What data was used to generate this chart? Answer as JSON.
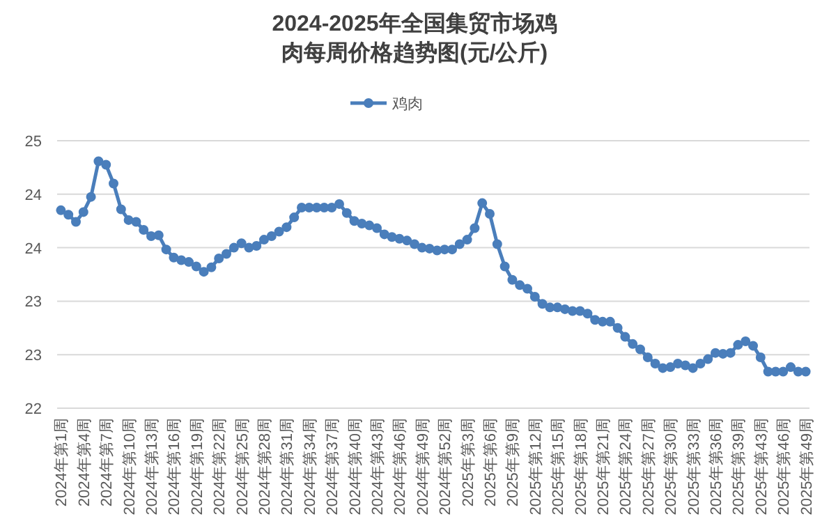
{
  "chart_data": {
    "type": "line",
    "title": "2024-2025年全国集贸市场鸡肉每周价格趋势图(元/公斤)",
    "categories": [
      "2024年第1周",
      null,
      null,
      "2024年第4周",
      null,
      null,
      "2024年第7周",
      null,
      null,
      "2024年第10周",
      null,
      null,
      "2024年第13周",
      null,
      null,
      "2024年第16周",
      null,
      null,
      "2024年第19周",
      null,
      null,
      "2024年第22周",
      null,
      null,
      "2024年第25周",
      null,
      null,
      "2024年第28周",
      null,
      null,
      "2024年第31周",
      null,
      null,
      "2024年第34周",
      null,
      null,
      "2024年第37周",
      null,
      null,
      "2024年第40周",
      null,
      null,
      "2024年第43周",
      null,
      null,
      "2024年第46周",
      null,
      null,
      "2024年第49周",
      null,
      null,
      "2024年第52周",
      null,
      null,
      "2025年第3周",
      null,
      null,
      "2025年第6周",
      null,
      null,
      "2025年第9周",
      null,
      null,
      "2025年第12周",
      null,
      null,
      "2025年第15周",
      null,
      null,
      "2025年第18周",
      null,
      null,
      "2025年第21周",
      null,
      null,
      "2025年第24周",
      null,
      null,
      "2025年第27周",
      null,
      null,
      "2025年第30周",
      null,
      null,
      "2025年第33周",
      null,
      null,
      "2025年第36周",
      null,
      null,
      "2025年第39周",
      null,
      null,
      "2025年第43周",
      null,
      null,
      "2025年第46周",
      null,
      null,
      "2025年第49周"
    ],
    "series": [
      {
        "name": "鸡肉",
        "color": "#4a7ebb",
        "values": [
          24.22,
          24.17,
          24.09,
          24.2,
          24.37,
          24.77,
          24.73,
          24.52,
          24.23,
          24.11,
          24.09,
          24.0,
          23.93,
          23.94,
          23.78,
          23.69,
          23.66,
          23.64,
          23.59,
          23.53,
          23.58,
          23.68,
          23.73,
          23.8,
          23.85,
          23.8,
          23.82,
          23.89,
          23.93,
          23.98,
          24.03,
          24.14,
          24.25,
          24.25,
          24.25,
          24.25,
          24.25,
          24.29,
          24.19,
          24.1,
          24.07,
          24.05,
          24.02,
          23.95,
          23.92,
          23.9,
          23.88,
          23.84,
          23.8,
          23.79,
          23.77,
          23.78,
          23.78,
          23.84,
          23.89,
          24.02,
          24.3,
          24.18,
          23.84,
          23.59,
          23.44,
          23.38,
          23.34,
          23.25,
          23.17,
          23.13,
          23.13,
          23.11,
          23.09,
          23.09,
          23.06,
          22.99,
          22.97,
          22.97,
          22.9,
          22.8,
          22.72,
          22.66,
          22.57,
          22.5,
          22.45,
          22.46,
          22.5,
          22.48,
          22.45,
          22.5,
          22.55,
          22.62,
          22.61,
          22.62,
          22.71,
          22.75,
          22.7,
          22.57,
          22.41,
          22.41,
          22.41,
          22.46,
          22.41,
          22.41
        ]
      }
    ],
    "ylim": [
      22,
      25
    ],
    "yticks": [
      22,
      {
        "value": 22.6,
        "label": "23"
      },
      {
        "value": 23.2,
        "label": "23"
      },
      {
        "value": 23.8,
        "label": "24"
      },
      {
        "value": 24.4,
        "label": "24"
      },
      25
    ],
    "grid": "y",
    "legend": "top",
    "marker": "circle",
    "line_style": "solid"
  }
}
